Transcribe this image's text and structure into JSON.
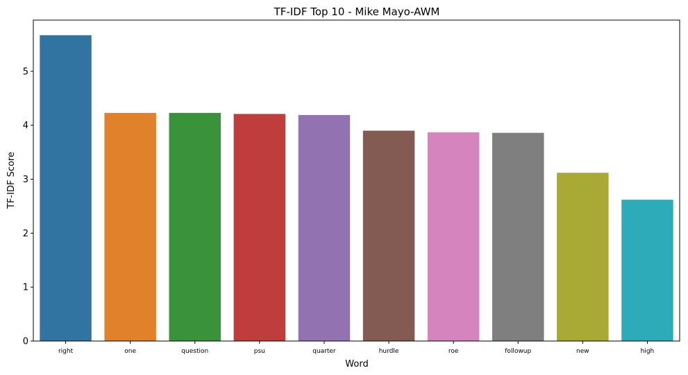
{
  "chart_data": {
    "type": "bar",
    "title": "TF-IDF Top 10 - Mike Mayo-AWM",
    "xlabel": "Word",
    "ylabel": "TF-IDF Score",
    "categories": [
      "right",
      "one",
      "question",
      "psu",
      "quarter",
      "hurdle",
      "roe",
      "followup",
      "new",
      "high"
    ],
    "values": [
      5.67,
      4.23,
      4.23,
      4.21,
      4.19,
      3.9,
      3.87,
      3.86,
      3.12,
      2.62
    ],
    "colors": [
      "#3274a1",
      "#e1812c",
      "#3a923a",
      "#c03d3e",
      "#9372b2",
      "#845b53",
      "#d684bd",
      "#7f7f7f",
      "#a9aa35",
      "#2eabb8"
    ],
    "ylim": [
      0,
      5.95
    ],
    "yticks": [
      0,
      1,
      2,
      3,
      4,
      5
    ],
    "grid": false,
    "legend": "none"
  }
}
